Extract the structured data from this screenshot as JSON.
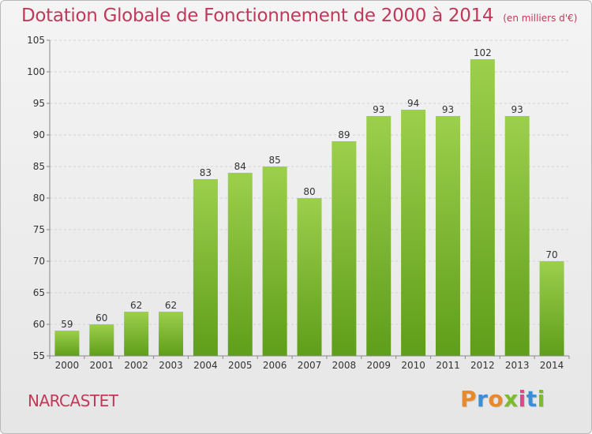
{
  "chart_data": {
    "type": "bar",
    "title": "Dotation Globale de Fonctionnement de 2000 à 2014",
    "subtitle": "(en milliers d'€)",
    "categories": [
      "2000",
      "2001",
      "2002",
      "2003",
      "2004",
      "2005",
      "2006",
      "2007",
      "2008",
      "2009",
      "2010",
      "2011",
      "2012",
      "2013",
      "2014"
    ],
    "values": [
      59,
      60,
      62,
      62,
      83,
      84,
      85,
      80,
      89,
      93,
      94,
      93,
      102,
      93,
      70
    ],
    "ylim": [
      55,
      105
    ],
    "yticks": [
      55,
      60,
      65,
      70,
      75,
      80,
      85,
      90,
      95,
      100,
      105
    ],
    "grid": true,
    "bar_color": "#7cbb2e"
  },
  "commune": "NARCASTET",
  "logo": {
    "letters": [
      "P",
      "r",
      "o",
      "x",
      "i",
      "t",
      "i"
    ],
    "colors": [
      "#e8892b",
      "#3a8fd6",
      "#e8892b",
      "#7cbb2e",
      "#d94a8a",
      "#3a8fd6",
      "#7cbb2e"
    ]
  }
}
